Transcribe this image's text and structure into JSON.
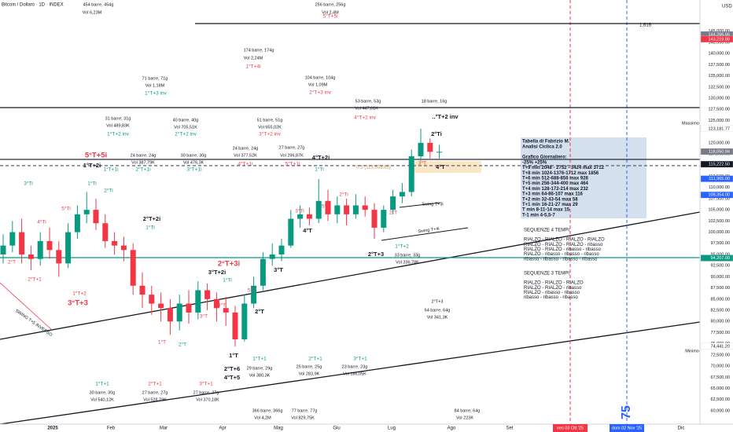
{
  "header": {
    "title": "Bitcoin / Dollaro · 1D · INDEX",
    "currency": "USD"
  },
  "chart_data": {
    "type": "candlestick",
    "open": [
      95000,
      97000,
      100000,
      95000,
      94000,
      98000,
      96000,
      93000,
      100000,
      104000,
      105000,
      102000,
      98000,
      97000,
      96000,
      88000,
      86000,
      84000,
      83000,
      80000,
      84000,
      82000,
      87000,
      85000,
      83000,
      82000,
      76000,
      84000,
      88000,
      94000,
      95000,
      97000,
      103000,
      104000,
      103000,
      107000,
      104000,
      106000,
      104000,
      106000,
      105000,
      101000,
      105000,
      108000,
      109000,
      117000,
      120000,
      118000
    ],
    "high": [
      99500,
      102500,
      103000,
      97000,
      100000,
      101000,
      98000,
      102000,
      106000,
      109000,
      107500,
      104000,
      100000,
      99000,
      97500,
      91000,
      88000,
      86500,
      85000,
      86000,
      87000,
      89000,
      88500,
      86500,
      85500,
      83500,
      86000,
      90000,
      95500,
      97500,
      98500,
      105000,
      106000,
      105500,
      111900,
      109500,
      108000,
      107500,
      108500,
      108000,
      106500,
      106000,
      109500,
      111000,
      118500,
      123200,
      121000,
      119500
    ],
    "low": [
      93000,
      95500,
      93000,
      91500,
      92500,
      94000,
      90000,
      92000,
      98500,
      102000,
      100500,
      96500,
      95000,
      93500,
      86000,
      83000,
      81500,
      80000,
      77000,
      78000,
      79500,
      80500,
      82500,
      80000,
      79000,
      74400,
      75500,
      83000,
      87000,
      92500,
      93500,
      96500,
      101000,
      101500,
      102000,
      102500,
      102000,
      101500,
      103000,
      103500,
      98500,
      100000,
      104000,
      106500,
      108000,
      116000,
      116500,
      116500
    ],
    "close": [
      97000,
      100000,
      95000,
      94000,
      98000,
      96000,
      93000,
      100000,
      104000,
      105000,
      102000,
      98000,
      97000,
      96000,
      88000,
      86000,
      84000,
      83000,
      80000,
      84000,
      82000,
      87000,
      85000,
      83000,
      82000,
      76000,
      84000,
      88000,
      94000,
      95000,
      97000,
      103000,
      104000,
      103000,
      107000,
      104000,
      106000,
      104000,
      106000,
      105000,
      101000,
      105000,
      108000,
      109000,
      117000,
      120000,
      118000,
      118000
    ],
    "up_color": "#089981",
    "down_color": "#f23645",
    "ylim": [
      57000,
      152000
    ],
    "yticks": [
      {
        "value": 60000,
        "label": "60,000.00"
      },
      {
        "value": 62500,
        "label": "62,500.00"
      },
      {
        "value": 65000,
        "label": "65,000.00"
      },
      {
        "value": 67500,
        "label": "67,500.00"
      },
      {
        "value": 70000,
        "label": "70,000.00"
      },
      {
        "value": 72500,
        "label": "72,500.00"
      },
      {
        "value": 75000,
        "label": "75,000.00"
      },
      {
        "value": 77500,
        "label": "77,500.00"
      },
      {
        "value": 80000,
        "label": "80,000.00"
      },
      {
        "value": 82500,
        "label": "82,500.00"
      },
      {
        "value": 85000,
        "label": "85,000.00"
      },
      {
        "value": 87500,
        "label": "87,500.00"
      },
      {
        "value": 90000,
        "label": "90,000.00"
      },
      {
        "value": 92500,
        "label": "92,500.00"
      },
      {
        "value": 95000,
        "label": "95,000.00"
      },
      {
        "value": 97500,
        "label": "97,500.00"
      },
      {
        "value": 100000,
        "label": "100,000.00"
      },
      {
        "value": 102500,
        "label": "102,500.00"
      },
      {
        "value": 105000,
        "label": "105,000.00"
      },
      {
        "value": 107500,
        "label": "107,500.00"
      },
      {
        "value": 110000,
        "label": "110,000.00"
      },
      {
        "value": 112500,
        "label": "112,500.00"
      },
      {
        "value": 117500,
        "label": "117,500.00"
      },
      {
        "value": 120000,
        "label": "120,000.00"
      },
      {
        "value": 125000,
        "label": "125,000.00"
      },
      {
        "value": 127500,
        "label": "127,500.00"
      },
      {
        "value": 130000,
        "label": "130,000.00"
      },
      {
        "value": 132500,
        "label": "132,500.00"
      },
      {
        "value": 135000,
        "label": "135,000.00"
      },
      {
        "value": 137500,
        "label": "137,500.00"
      },
      {
        "value": 140000,
        "label": "140,000.00"
      },
      {
        "value": 142500,
        "label": "142,500.00"
      },
      {
        "value": 145000,
        "label": "145,000.00"
      }
    ],
    "grid": false,
    "time_labels": [
      "2025",
      "Feb",
      "Mar",
      "Apr",
      "Mag",
      "Giu",
      "Lug",
      "Ago",
      "Set",
      "Dic"
    ],
    "date_tags": [
      {
        "label": "ven 03 Ott '25",
        "color": "#f23645"
      },
      {
        "label": "dom 02 Nov '25",
        "color": "#2962ff"
      }
    ],
    "levels": [
      {
        "value": 146722,
        "color": "#131722",
        "dash": false
      },
      {
        "value": 127900,
        "color": "#131722",
        "dash": false
      },
      {
        "value": 116300,
        "color": "#131722",
        "dash": false
      },
      {
        "value": 114900,
        "color": "#5d606b",
        "dash": true
      },
      {
        "value": 94300,
        "color": "#089981",
        "dash": false
      }
    ],
    "price_tags": [
      {
        "value": 144266.66,
        "label": "144,266.66",
        "color": "#787b86"
      },
      {
        "value": 143219.88,
        "label": "143,219.88",
        "color": "#f23645"
      },
      {
        "value": 123181.77,
        "label": "123,181.77",
        "color": "#ffffff"
      },
      {
        "value": 118050.84,
        "label": "118,050.84",
        "color": "#787b86"
      },
      {
        "value": 115222.5,
        "label": "115,222.50",
        "color": "#131722"
      },
      {
        "value": 111965,
        "label": "111,965.00",
        "color": "#2962ff"
      },
      {
        "value": 108354,
        "label": "108,354.00",
        "color": "#2962ff"
      },
      {
        "value": 94207,
        "label": "94,207.00",
        "color": "#089981"
      },
      {
        "value": 74441.2,
        "label": "74,441.20",
        "color": "#ffffff"
      }
    ],
    "annotations": [
      "454 barre, 454g",
      "Vol 6,23M",
      "256 barre, 256g",
      "Vol 2,4M",
      "5°T+5i",
      "174 barre, 174g",
      "Vol 2,24M",
      "1°T+4i",
      "71 barre, 71g",
      "Vol 1,18M",
      "1°T+3 inv",
      "104 barre, 104g",
      "Vol 1,09M",
      "2°T+3 inv",
      "53 barre, 53g",
      "Vol 447,61K",
      "4°T+2 inv",
      "18 barre, 16g",
      "..°T+2 inv",
      "31 barre, 31g",
      "Vol 489,83K",
      "1°T+2 inv",
      "40 barre, 40g",
      "Vol 705,51K",
      "2°T+2 inv",
      "51 barre, 51g",
      "Vol 655,02K",
      "3°T+2 inv",
      "5°T+5i",
      "1°T+2i",
      "24 barre, 24g",
      "Vol 387,79K",
      "2°T+1i",
      "30 barre, 30g",
      "Vol 476,3K",
      "3°T+1i",
      "24 barre, 24g",
      "Vol 377,52K",
      "4°T+1i",
      "27 barre, 27g",
      "Vol 296,87K",
      "5°T+1i",
      "4°T+2i",
      "1°T+1i",
      "1°Ti",
      "2°Ti",
      "2°T+3",
      "33 barre, 33g",
      "Vol 236,78K",
      "1°T+2",
      "Swing T+3i",
      "Swing T+4i",
      "2°T+3",
      "64 barre, 64g",
      "Vol 341,3K",
      "2°T+2i",
      "1°Ti",
      "2°T+3i",
      "3°T+2i",
      "1°Ti",
      "1°T+2",
      "3°T+3",
      "2°T+1",
      "2°T",
      "3°Ti",
      "5°Ti",
      "4°Ti",
      "1°Ti",
      "2°Ti",
      "2°T+6",
      "4°T+5",
      "29 barre, 29g",
      "Vol 380,3K",
      "25 barre, 25g",
      "Vol 283,9K",
      "23 barre, 23g",
      "Vol 186,05K",
      "1°T+1",
      "2°T+1",
      "3°T+1",
      "30 barre, 30g",
      "Vol 540,12K",
      "1°T+1",
      "27 barre, 27g",
      "Vol 528,79K",
      "2°T+1",
      "27 barre, 27g",
      "Vol 370,18K",
      "3°T+1",
      "366 barre, 366g",
      "Vol 4,2M",
      "77 barre, 77g",
      "Vol 829,75K",
      "84 barre, 64g",
      "Vol 223K",
      "0,5 (113,633.85)",
      "3°T",
      "4°T",
      "4°T",
      "5°T",
      "2°Ti",
      "3°Ti",
      "3°T",
      "2°T",
      "1°T",
      "1°T",
      "2°T",
      "3°T",
      "4°T",
      "5°T",
      "2°T",
      "SWING T+5 INVERSO",
      "1,616",
      "Massimo",
      "Minimo",
      "75"
    ]
  },
  "note_table": {
    "lines": [
      "Tabella di Fabrizio M.",
      "Analisi Ciclica 2.0",
      "",
      "Grafico Giornaliero:",
      "-25% +25%",
      "T+9 min 2048 - 2752 - 3424 max 3712",
      "T+8 min 1024-1376-1712 max 1856",
      "T+6 min 512-688-856 max 928",
      "T+5 min 256-344-400 max 464",
      "T+4 min 128-172-214 max 232",
      "T+3 min 64-86-107 max 116",
      "T+2 min 32-43-54 max 58",
      "T+1 min 16-21-27 max 29",
      "T min 8-11-14 max 15",
      "T-1 min 4-5,5-7"
    ]
  },
  "sequences": {
    "four_title": "SEQUENZE 4 TEMPI:",
    "four": [
      "RIALZO - RIALZO - RIALZO - RIALZO",
      "RIALZO - RIALZO - RIALZO - ribasso",
      "RIALZO - RIALZO - ribasso - ribasso",
      "RIALZO - ribasso - ribasso - ribasso",
      "ribasso - ribasso - ribasso - ribasso"
    ],
    "three_title": "SEQUENZE 3 TEMPI:",
    "three": [
      "RIALZO - RIALZO - RIALZO",
      "RIALZO - RIALZO - ribasso",
      "RIALZO - ribasso - ribasso",
      "ribasso - ribasso - ribasso"
    ]
  }
}
